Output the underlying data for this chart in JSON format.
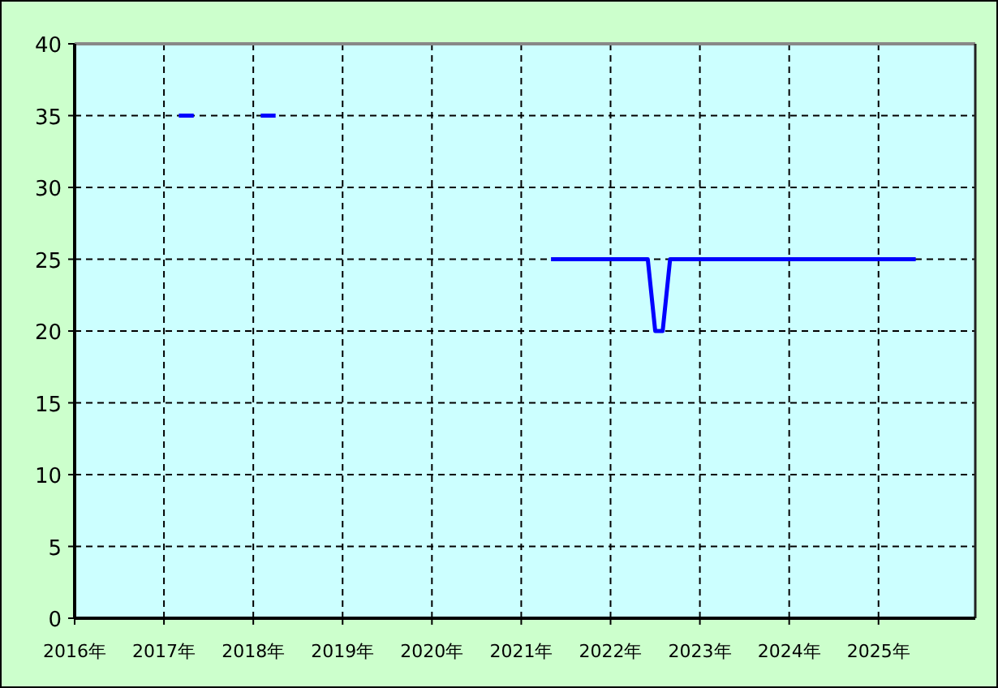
{
  "chart_data": {
    "type": "line",
    "series": [
      {
        "color": "#0000ff",
        "x": [
          "2017-03",
          "2017-05"
        ],
        "values": [
          35,
          35
        ]
      },
      {
        "color": "#0000ff",
        "x": [
          "2018-02",
          "2018-04"
        ],
        "values": [
          35,
          35
        ]
      },
      {
        "color": "#0000ff",
        "x": [
          "2021-05",
          "2022-06",
          "2022-07",
          "2022-08",
          "2022-09",
          "2025-06"
        ],
        "values": [
          25,
          25,
          20,
          20,
          25,
          25
        ]
      }
    ],
    "xlim": [
      "2016-01",
      "2026-02"
    ],
    "xticks": [
      {
        "value": "2016",
        "label": "2016年"
      },
      {
        "value": "2017",
        "label": "2017年"
      },
      {
        "value": "2018",
        "label": "2018年"
      },
      {
        "value": "2019",
        "label": "2019年"
      },
      {
        "value": "2020",
        "label": "2020年"
      },
      {
        "value": "2021",
        "label": "2021年"
      },
      {
        "value": "2022",
        "label": "2022年"
      },
      {
        "value": "2023",
        "label": "2023年"
      },
      {
        "value": "2024",
        "label": "2024年"
      },
      {
        "value": "2025",
        "label": "2025年"
      }
    ],
    "ylim": [
      0,
      40
    ],
    "yticks": [
      0,
      5,
      10,
      15,
      20,
      25,
      30,
      35,
      40
    ],
    "grid": true,
    "marker": "none",
    "line_style": "solid"
  }
}
